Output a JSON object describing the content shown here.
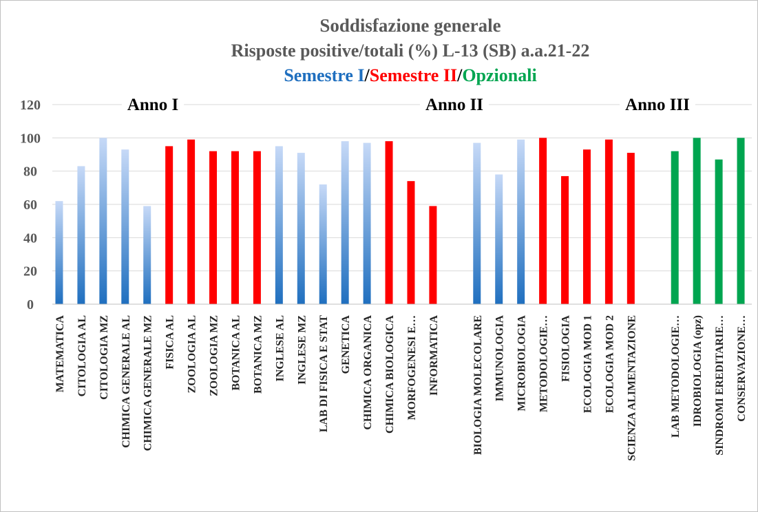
{
  "chart_data": {
    "type": "bar",
    "title": "Soddisfazione generale",
    "subtitle": "Risposte positive/totali (%) L-13 (SB)  a.a.21-22",
    "legend_separator": "/",
    "annotations": [
      "Anno I",
      "Anno II",
      "Anno III"
    ],
    "categories": [
      "MATEMATICA",
      "CITOLOGIA AL",
      "CITOLOGIA MZ",
      "CHIMICA GENERALE AL",
      "CHIMICA GENERALE MZ",
      "FISICA AL",
      "ZOOLOGIA AL",
      "ZOOLOGIA MZ",
      "BOTANICA AL",
      "BOTANICA MZ",
      "INGLESE AL",
      "INGLESE MZ",
      "LAB DI FISICA E STAT",
      "GENETICA",
      "CHIMICA ORGANICA",
      "CHIMICA BIOLOGICA",
      "MORFOGENESI E…",
      "INFORMATICA",
      null,
      "BIOLOGIA MOLECOLARE",
      "IMMUNOLOGIA",
      "MICROBIOLOGIA",
      "METODOLOGIE…",
      "FISIOLOGIA",
      "ECOLOGIA MOD 1",
      "ECOLOGIA MOD 2",
      "SCIENZA ALIMENTAZIONE",
      null,
      "LAB METODOLOGIE…",
      "IDROBIOLOGIA  (opz)",
      "SINDROMI EREDITARIE…",
      "CONSERVAZIONE…"
    ],
    "series": [
      {
        "name": "Semestre I",
        "color": "#1f6fbf",
        "values": [
          62,
          83,
          100,
          93,
          59,
          null,
          null,
          null,
          null,
          null,
          95,
          91,
          72,
          98,
          97,
          null,
          null,
          null,
          null,
          97,
          78,
          99,
          null,
          null,
          null,
          null,
          null,
          null,
          null,
          null,
          null,
          null
        ]
      },
      {
        "name": "Semestre II",
        "color": "#ff0000",
        "values": [
          null,
          null,
          null,
          null,
          null,
          95,
          99,
          92,
          92,
          92,
          null,
          null,
          null,
          null,
          null,
          98,
          74,
          59,
          null,
          null,
          null,
          null,
          100,
          77,
          93,
          99,
          91,
          null,
          null,
          null,
          null,
          null
        ]
      },
      {
        "name": "Opzionali",
        "color": "#00a550",
        "values": [
          null,
          null,
          null,
          null,
          null,
          null,
          null,
          null,
          null,
          null,
          null,
          null,
          null,
          null,
          null,
          null,
          null,
          null,
          null,
          null,
          null,
          null,
          null,
          null,
          null,
          null,
          null,
          null,
          92,
          100,
          87,
          100
        ]
      }
    ],
    "ylim": [
      0,
      120
    ],
    "yticks": [
      0,
      20,
      40,
      60,
      80,
      100,
      120
    ],
    "grid": true
  }
}
